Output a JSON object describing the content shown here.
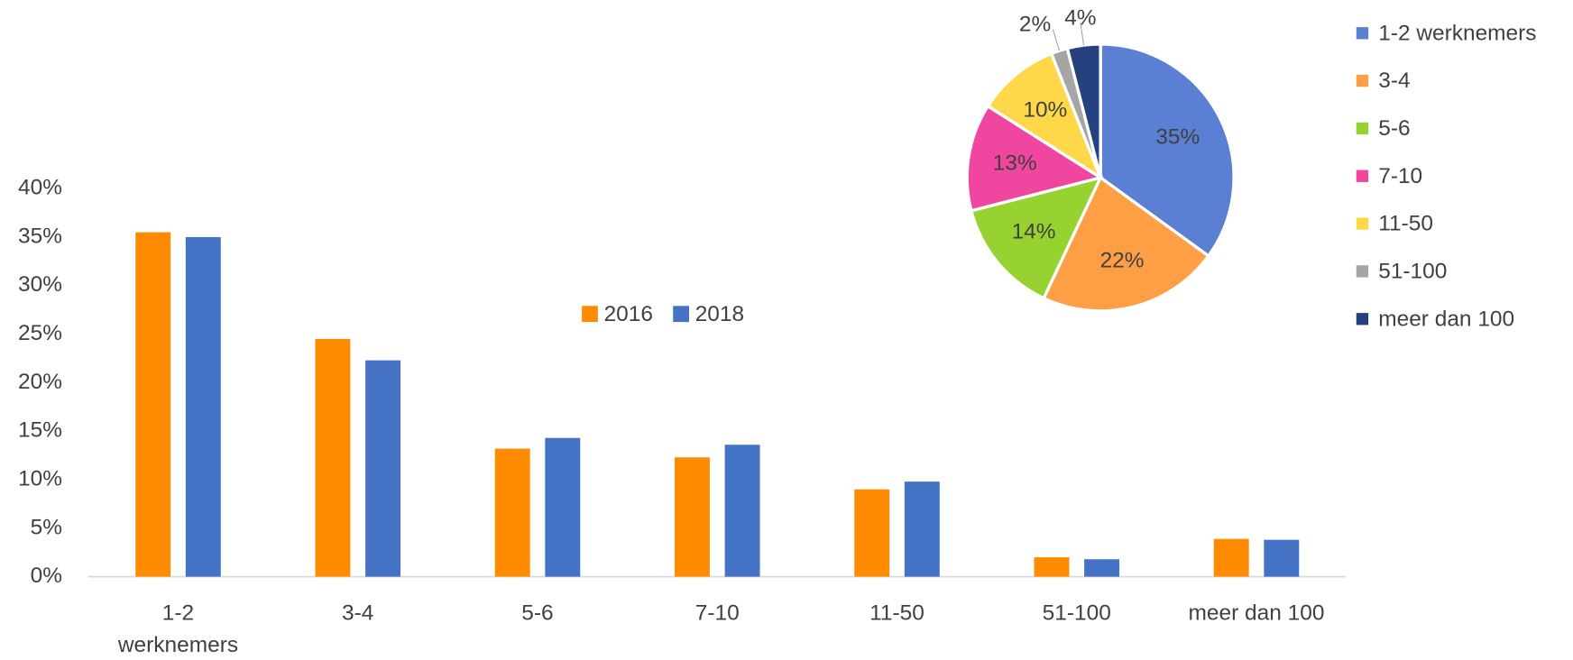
{
  "chart_data": [
    {
      "type": "bar",
      "categories": [
        "1-2 werknemers",
        "3-4",
        "5-6",
        "7-10",
        "11-50",
        "51-100",
        "meer dan 100"
      ],
      "series": [
        {
          "name": "2016",
          "color": "#ff8c00",
          "values": [
            35.5,
            24.5,
            13.2,
            12.3,
            9.0,
            2.0,
            3.9
          ]
        },
        {
          "name": "2018",
          "color": "#4472c4",
          "values": [
            35.0,
            22.3,
            14.3,
            13.6,
            9.8,
            1.8,
            3.8
          ]
        }
      ],
      "ylim": [
        0,
        40
      ],
      "yticks": [
        {
          "value": 0,
          "label": "0%"
        },
        {
          "value": 5,
          "label": "5%"
        },
        {
          "value": 10,
          "label": "10%"
        },
        {
          "value": 15,
          "label": "15%"
        },
        {
          "value": 20,
          "label": "20%"
        },
        {
          "value": 25,
          "label": "25%"
        },
        {
          "value": 30,
          "label": "30%"
        },
        {
          "value": 35,
          "label": "35%"
        },
        {
          "value": 40,
          "label": "40%"
        }
      ],
      "grid": false,
      "legend": "center"
    },
    {
      "type": "pie",
      "categories": [
        "1-2 werknemers",
        "3-4",
        "5-6",
        "7-10",
        "11-50",
        "51-100",
        "meer dan 100"
      ],
      "values": [
        35,
        22,
        14,
        13,
        10,
        2,
        4
      ],
      "value_labels": [
        "35%",
        "22%",
        "14%",
        "13%",
        "10%",
        "2%",
        "4%"
      ],
      "colors": [
        "#5b7fd3",
        "#ff9f45",
        "#98d230",
        "#f0469f",
        "#ffd84a",
        "#a5a5a5",
        "#26427e"
      ],
      "legend": "right"
    }
  ]
}
